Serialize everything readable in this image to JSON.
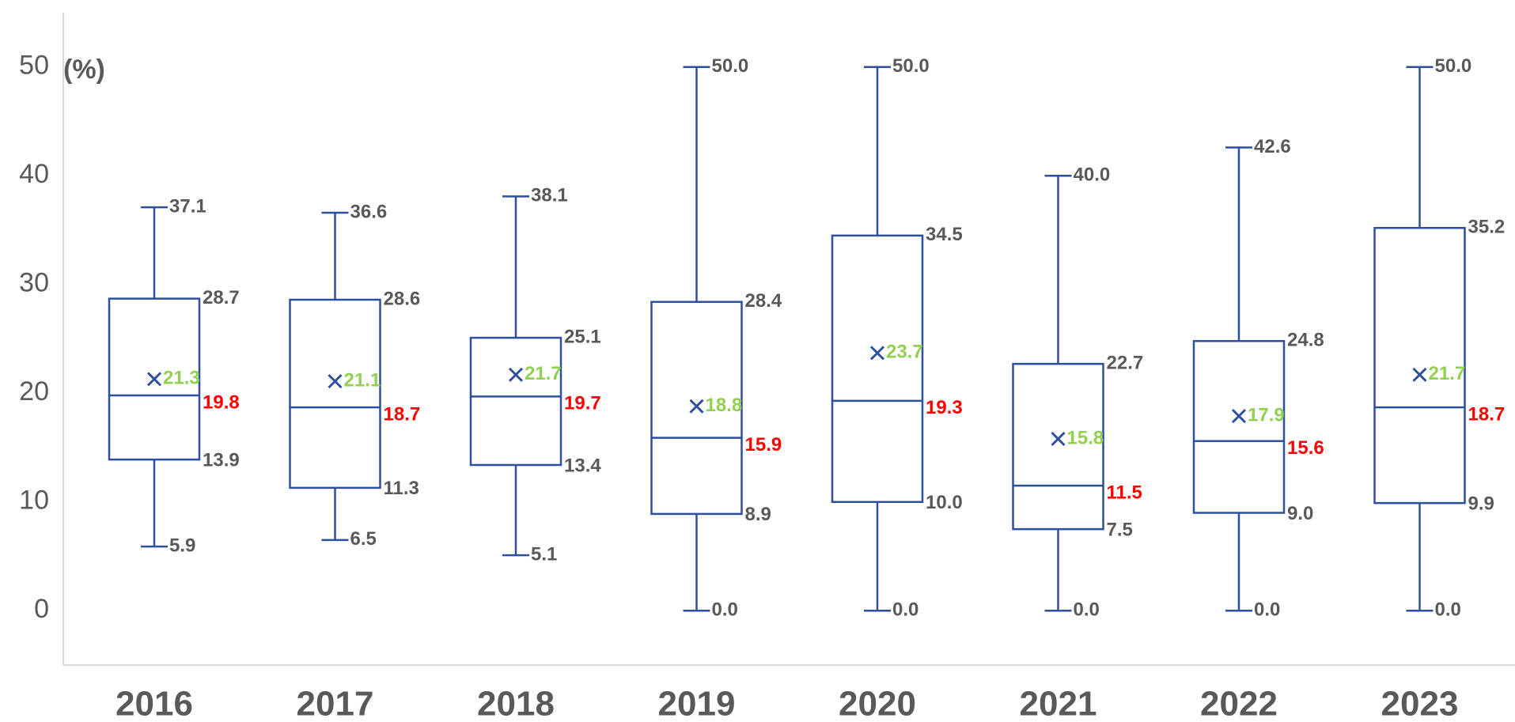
{
  "chart_data": {
    "type": "box",
    "y_label": "(%)",
    "categories": [
      "2016",
      "2017",
      "2018",
      "2019",
      "2020",
      "2021",
      "2022",
      "2023"
    ],
    "min": [
      5.9,
      6.5,
      5.1,
      0.0,
      0.0,
      0.0,
      0.0,
      0.0
    ],
    "q1": [
      13.9,
      11.3,
      13.4,
      8.9,
      10.0,
      7.5,
      9.0,
      9.9
    ],
    "median": [
      19.8,
      18.7,
      19.7,
      15.9,
      19.3,
      11.5,
      15.6,
      18.7
    ],
    "q3": [
      28.7,
      28.6,
      25.1,
      28.4,
      34.5,
      22.7,
      24.8,
      35.2
    ],
    "max": [
      37.1,
      36.6,
      38.1,
      50.0,
      50.0,
      40.0,
      42.6,
      50.0
    ],
    "mean": [
      21.3,
      21.1,
      21.7,
      18.8,
      23.7,
      15.8,
      17.9,
      21.7
    ],
    "value_labels": {
      "min": [
        "5.9",
        "6.5",
        "5.1",
        "0.0",
        "0.0",
        "0.0",
        "0.0",
        "0.0"
      ],
      "q1": [
        "13.9",
        "11.3",
        "13.4",
        "8.9",
        "10.0",
        "7.5",
        "9.0",
        "9.9"
      ],
      "median": [
        "19.8",
        "18.7",
        "19.7",
        "15.9",
        "19.3",
        "11.5",
        "15.6",
        "18.7"
      ],
      "q3": [
        "28.7",
        "28.6",
        "25.1",
        "28.4",
        "34.5",
        "22.7",
        "24.8",
        "35.2"
      ],
      "max": [
        "37.1",
        "36.6",
        "38.1",
        "50.0",
        "50.0",
        "40.0",
        "42.6",
        "50.0"
      ],
      "mean": [
        "21.3",
        "21.1",
        "21.7",
        "18.8",
        "23.7",
        "15.8",
        "17.9",
        "21.7"
      ]
    },
    "ylim": [
      -5,
      55
    ],
    "yticks": [
      0,
      10,
      20,
      30,
      40,
      50
    ],
    "color": "#2e4f9f",
    "label_color": "#595959",
    "median_label_color": "#ff0000",
    "mean_label_color": "#92d050"
  }
}
